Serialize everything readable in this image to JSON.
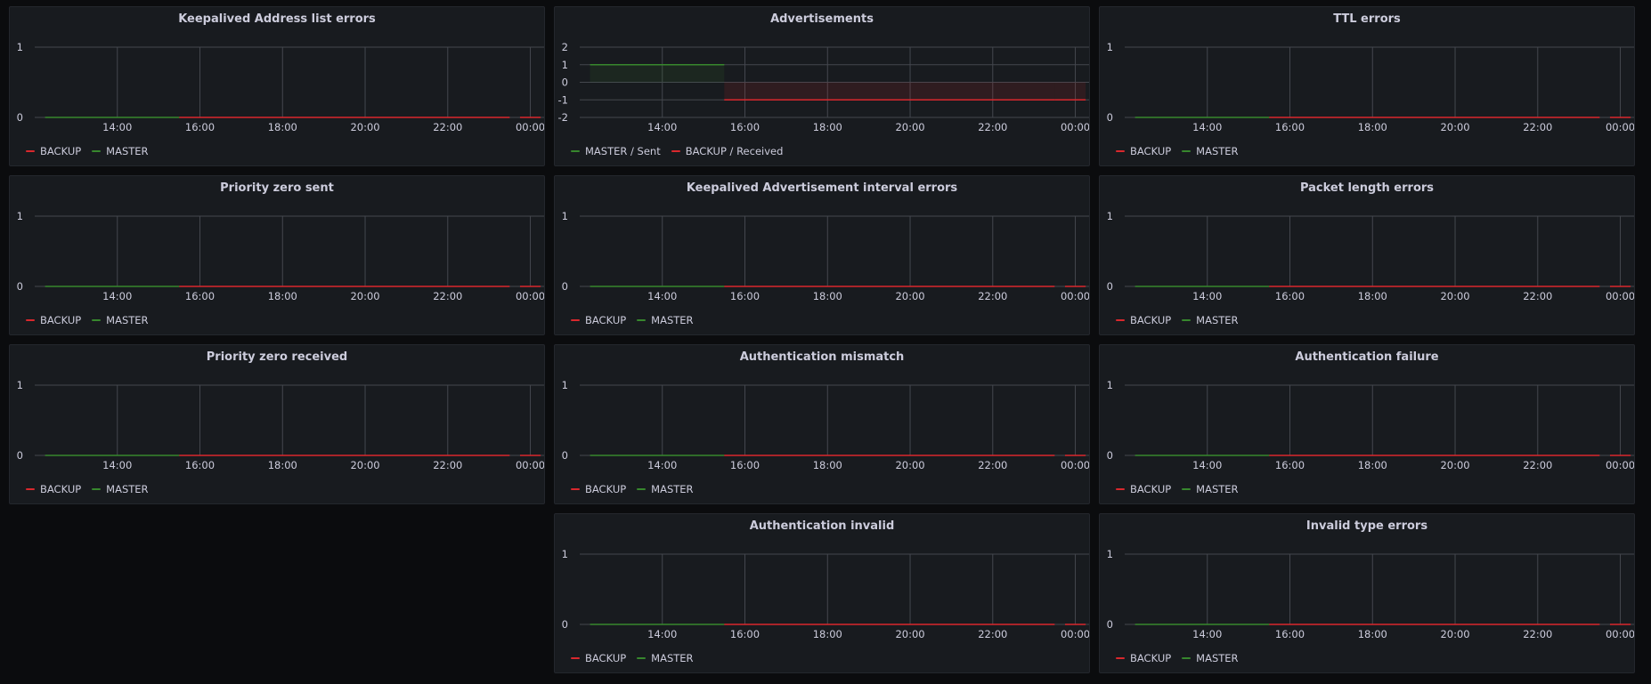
{
  "colors": {
    "backup": "#d9282d",
    "master": "#37872d",
    "grid": "#44474e"
  },
  "chart_data": [
    {
      "type": "line",
      "title": "Keepalived Address list errors",
      "x_ticks": [
        "14:00",
        "16:00",
        "18:00",
        "20:00",
        "22:00",
        "00:00"
      ],
      "y_ticks": [
        "1",
        "0"
      ],
      "ylim": [
        0,
        1
      ],
      "legend": [
        "BACKUP",
        "MASTER"
      ],
      "series": [
        {
          "name": "MASTER",
          "color": "#37872d",
          "x": [
            "12:15",
            "15:30"
          ],
          "values": [
            0,
            0
          ]
        },
        {
          "name": "BACKUP",
          "color": "#d9282d",
          "x": [
            "15:30",
            "23:30"
          ],
          "values": [
            0,
            0
          ]
        },
        {
          "name": "BACKUP",
          "color": "#d9282d",
          "x": [
            "23:45",
            "00:15"
          ],
          "values": [
            0,
            0
          ]
        }
      ]
    },
    {
      "type": "line",
      "title": "Advertisements",
      "x_ticks": [
        "14:00",
        "16:00",
        "18:00",
        "20:00",
        "22:00",
        "00:00"
      ],
      "y_ticks": [
        "2",
        "1",
        "0",
        "-1",
        "-2"
      ],
      "ylim": [
        -2,
        2
      ],
      "legend": [
        "MASTER / Sent",
        "BACKUP / Received"
      ],
      "series": [
        {
          "name": "MASTER / Sent",
          "color": "#37872d",
          "x": [
            "12:15",
            "15:30"
          ],
          "values": [
            1,
            1
          ]
        },
        {
          "name": "BACKUP / Received",
          "color": "#d9282d",
          "x": [
            "15:30",
            "23:30"
          ],
          "values": [
            -1,
            -1
          ]
        },
        {
          "name": "BACKUP / Received",
          "color": "#d9282d",
          "x": [
            "23:30",
            "00:15"
          ],
          "values": [
            -1,
            -1
          ]
        }
      ]
    },
    {
      "type": "line",
      "title": "TTL errors",
      "x_ticks": [
        "14:00",
        "16:00",
        "18:00",
        "20:00",
        "22:00",
        "00:00"
      ],
      "y_ticks": [
        "1",
        "0"
      ],
      "ylim": [
        0,
        1
      ],
      "legend": [
        "BACKUP",
        "MASTER"
      ],
      "series": [
        {
          "name": "MASTER",
          "color": "#37872d",
          "x": [
            "12:15",
            "15:30"
          ],
          "values": [
            0,
            0
          ]
        },
        {
          "name": "BACKUP",
          "color": "#d9282d",
          "x": [
            "15:30",
            "23:30"
          ],
          "values": [
            0,
            0
          ]
        },
        {
          "name": "BACKUP",
          "color": "#d9282d",
          "x": [
            "23:45",
            "00:15"
          ],
          "values": [
            0,
            0
          ]
        }
      ]
    },
    {
      "type": "line",
      "title": "Priority zero sent",
      "x_ticks": [
        "14:00",
        "16:00",
        "18:00",
        "20:00",
        "22:00",
        "00:00"
      ],
      "y_ticks": [
        "1",
        "0"
      ],
      "ylim": [
        0,
        1
      ],
      "legend": [
        "BACKUP",
        "MASTER"
      ],
      "series": [
        {
          "name": "MASTER",
          "color": "#37872d",
          "x": [
            "12:15",
            "15:30"
          ],
          "values": [
            0,
            0
          ]
        },
        {
          "name": "BACKUP",
          "color": "#d9282d",
          "x": [
            "15:30",
            "23:30"
          ],
          "values": [
            0,
            0
          ]
        },
        {
          "name": "BACKUP",
          "color": "#d9282d",
          "x": [
            "23:45",
            "00:15"
          ],
          "values": [
            0,
            0
          ]
        }
      ]
    },
    {
      "type": "line",
      "title": "Keepalived Advertisement interval errors",
      "x_ticks": [
        "14:00",
        "16:00",
        "18:00",
        "20:00",
        "22:00",
        "00:00"
      ],
      "y_ticks": [
        "1",
        "0"
      ],
      "ylim": [
        0,
        1
      ],
      "legend": [
        "BACKUP",
        "MASTER"
      ],
      "series": [
        {
          "name": "MASTER",
          "color": "#37872d",
          "x": [
            "12:15",
            "15:30"
          ],
          "values": [
            0,
            0
          ]
        },
        {
          "name": "BACKUP",
          "color": "#d9282d",
          "x": [
            "15:30",
            "23:30"
          ],
          "values": [
            0,
            0
          ]
        },
        {
          "name": "BACKUP",
          "color": "#d9282d",
          "x": [
            "23:45",
            "00:15"
          ],
          "values": [
            0,
            0
          ]
        }
      ]
    },
    {
      "type": "line",
      "title": "Packet length errors",
      "x_ticks": [
        "14:00",
        "16:00",
        "18:00",
        "20:00",
        "22:00",
        "00:00"
      ],
      "y_ticks": [
        "1",
        "0"
      ],
      "ylim": [
        0,
        1
      ],
      "legend": [
        "BACKUP",
        "MASTER"
      ],
      "series": [
        {
          "name": "MASTER",
          "color": "#37872d",
          "x": [
            "12:15",
            "15:30"
          ],
          "values": [
            0,
            0
          ]
        },
        {
          "name": "BACKUP",
          "color": "#d9282d",
          "x": [
            "15:30",
            "23:30"
          ],
          "values": [
            0,
            0
          ]
        },
        {
          "name": "BACKUP",
          "color": "#d9282d",
          "x": [
            "23:45",
            "00:15"
          ],
          "values": [
            0,
            0
          ]
        }
      ]
    },
    {
      "type": "line",
      "title": "Priority zero received",
      "x_ticks": [
        "14:00",
        "16:00",
        "18:00",
        "20:00",
        "22:00",
        "00:00"
      ],
      "y_ticks": [
        "1",
        "0"
      ],
      "ylim": [
        0,
        1
      ],
      "legend": [
        "BACKUP",
        "MASTER"
      ],
      "series": [
        {
          "name": "MASTER",
          "color": "#37872d",
          "x": [
            "12:15",
            "15:30"
          ],
          "values": [
            0,
            0
          ]
        },
        {
          "name": "BACKUP",
          "color": "#d9282d",
          "x": [
            "15:30",
            "23:30"
          ],
          "values": [
            0,
            0
          ]
        },
        {
          "name": "BACKUP",
          "color": "#d9282d",
          "x": [
            "23:45",
            "00:15"
          ],
          "values": [
            0,
            0
          ]
        }
      ]
    },
    {
      "type": "line",
      "title": "Authentication mismatch",
      "x_ticks": [
        "14:00",
        "16:00",
        "18:00",
        "20:00",
        "22:00",
        "00:00"
      ],
      "y_ticks": [
        "1",
        "0"
      ],
      "ylim": [
        0,
        1
      ],
      "legend": [
        "BACKUP",
        "MASTER"
      ],
      "series": [
        {
          "name": "MASTER",
          "color": "#37872d",
          "x": [
            "12:15",
            "15:30"
          ],
          "values": [
            0,
            0
          ]
        },
        {
          "name": "BACKUP",
          "color": "#d9282d",
          "x": [
            "15:30",
            "23:30"
          ],
          "values": [
            0,
            0
          ]
        },
        {
          "name": "BACKUP",
          "color": "#d9282d",
          "x": [
            "23:45",
            "00:15"
          ],
          "values": [
            0,
            0
          ]
        }
      ]
    },
    {
      "type": "line",
      "title": "Authentication failure",
      "x_ticks": [
        "14:00",
        "16:00",
        "18:00",
        "20:00",
        "22:00",
        "00:00"
      ],
      "y_ticks": [
        "1",
        "0"
      ],
      "ylim": [
        0,
        1
      ],
      "legend": [
        "BACKUP",
        "MASTER"
      ],
      "series": [
        {
          "name": "MASTER",
          "color": "#37872d",
          "x": [
            "12:15",
            "15:30"
          ],
          "values": [
            0,
            0
          ]
        },
        {
          "name": "BACKUP",
          "color": "#d9282d",
          "x": [
            "15:30",
            "23:30"
          ],
          "values": [
            0,
            0
          ]
        },
        {
          "name": "BACKUP",
          "color": "#d9282d",
          "x": [
            "23:45",
            "00:15"
          ],
          "values": [
            0,
            0
          ]
        }
      ]
    },
    {
      "type": "line",
      "title": "Authentication invalid",
      "x_ticks": [
        "14:00",
        "16:00",
        "18:00",
        "20:00",
        "22:00",
        "00:00"
      ],
      "y_ticks": [
        "1",
        "0"
      ],
      "ylim": [
        0,
        1
      ],
      "legend": [
        "BACKUP",
        "MASTER"
      ],
      "series": [
        {
          "name": "MASTER",
          "color": "#37872d",
          "x": [
            "12:15",
            "15:30"
          ],
          "values": [
            0,
            0
          ]
        },
        {
          "name": "BACKUP",
          "color": "#d9282d",
          "x": [
            "15:30",
            "23:30"
          ],
          "values": [
            0,
            0
          ]
        },
        {
          "name": "BACKUP",
          "color": "#d9282d",
          "x": [
            "23:45",
            "00:15"
          ],
          "values": [
            0,
            0
          ]
        }
      ]
    },
    {
      "type": "line",
      "title": "Invalid type errors",
      "x_ticks": [
        "14:00",
        "16:00",
        "18:00",
        "20:00",
        "22:00",
        "00:00"
      ],
      "y_ticks": [
        "1",
        "0"
      ],
      "ylim": [
        0,
        1
      ],
      "legend": [
        "BACKUP",
        "MASTER"
      ],
      "series": [
        {
          "name": "MASTER",
          "color": "#37872d",
          "x": [
            "12:15",
            "15:30"
          ],
          "values": [
            0,
            0
          ]
        },
        {
          "name": "BACKUP",
          "color": "#d9282d",
          "x": [
            "15:30",
            "23:30"
          ],
          "values": [
            0,
            0
          ]
        },
        {
          "name": "BACKUP",
          "color": "#d9282d",
          "x": [
            "23:45",
            "00:15"
          ],
          "values": [
            0,
            0
          ]
        }
      ]
    }
  ]
}
